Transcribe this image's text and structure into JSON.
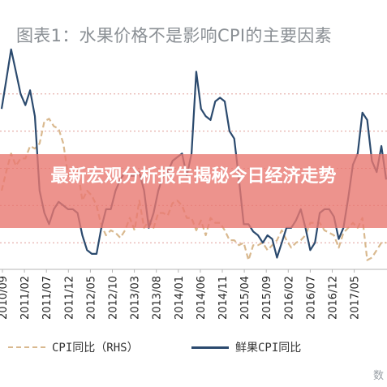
{
  "title": "图表1：水果价格不是影响CPI的主要因素",
  "banner": "最新宏观分析报告揭秘今日经济走势",
  "watermark": "数",
  "colors": {
    "fresh_fruit": "#2b4a6e",
    "cpi": "#d9b98f",
    "banner": "#e87870",
    "grid": "#c0392b",
    "axis": "#b5b5b5"
  },
  "chart_data": {
    "type": "line",
    "x": [
      "2010-09",
      "2010-10",
      "2010-11",
      "2010-12",
      "2011-01",
      "2011-02",
      "2011-03",
      "2011-04",
      "2011-05",
      "2011-06",
      "2011-07",
      "2011-08",
      "2011-09",
      "2011-10",
      "2011-11",
      "2011-12",
      "2012-01",
      "2012-02",
      "2012-03",
      "2012-04",
      "2012-05",
      "2012-06",
      "2012-07",
      "2012-08",
      "2012-09",
      "2012-10",
      "2012-11",
      "2012-12",
      "2013-01",
      "2013-02",
      "2013-03",
      "2013-04",
      "2013-05",
      "2013-06",
      "2013-07",
      "2013-08",
      "2013-09",
      "2013-10",
      "2013-11",
      "2013-12",
      "2014-01",
      "2014-02",
      "2014-03",
      "2014-04",
      "2014-05",
      "2014-06",
      "2014-07",
      "2014-08",
      "2014-09",
      "2014-10",
      "2014-11",
      "2014-12",
      "2015-01",
      "2015-02",
      "2015-03",
      "2015-04",
      "2015-05",
      "2015-06",
      "2015-07",
      "2015-08",
      "2015-09",
      "2015-10",
      "2015-11",
      "2015-12",
      "2016-01",
      "2016-02",
      "2016-03",
      "2016-04",
      "2016-05",
      "2016-06",
      "2016-07",
      "2016-08",
      "2016-09",
      "2016-10",
      "2016-11",
      "2016-12",
      "2017-01",
      "2017-02",
      "2017-03",
      "2017-04",
      "2017-05",
      "2017-06"
    ],
    "categories": [
      "2010/09",
      "2011/02",
      "2011/07",
      "2011/12",
      "2012/05",
      "2012/10",
      "2013/03",
      "2013/08",
      "2014/01",
      "2014/06",
      "2014/11",
      "2015/04",
      "2015/09",
      "2016/02",
      "2016/07",
      "2016/12",
      "2017/05"
    ],
    "series": [
      {
        "name": "CPI同比（RHS）",
        "style": "dashed",
        "values": [
          3.6,
          4.4,
          5.1,
          4.6,
          4.9,
          4.9,
          5.4,
          5.3,
          5.5,
          6.4,
          6.5,
          6.2,
          6.1,
          5.5,
          4.2,
          4.1,
          4.5,
          3.2,
          3.6,
          3.4,
          3.0,
          2.2,
          1.8,
          2.0,
          1.9,
          1.7,
          2.0,
          2.5,
          2.0,
          3.2,
          2.1,
          2.4,
          2.1,
          2.7,
          2.7,
          2.6,
          3.1,
          3.2,
          3.0,
          2.5,
          2.5,
          2.0,
          2.4,
          1.8,
          2.5,
          2.3,
          2.3,
          2.0,
          1.6,
          1.6,
          1.4,
          1.5,
          0.8,
          1.4,
          1.4,
          1.5,
          1.2,
          1.4,
          1.6,
          2.0,
          1.6,
          1.3,
          1.5,
          1.6,
          1.8,
          2.3,
          2.3,
          2.3,
          2.0,
          1.9,
          1.8,
          1.3,
          1.9,
          2.1,
          2.3,
          2.1,
          2.5,
          0.8,
          0.9,
          1.2,
          1.5,
          1.5
        ]
      },
      {
        "name": "鲜果CPI同比",
        "style": "solid",
        "values": [
          26,
          34,
          42,
          36,
          30,
          27,
          31,
          24,
          4,
          -2,
          -5,
          -1,
          1,
          0,
          -1,
          -1,
          -2,
          -8,
          -12,
          -13,
          -13,
          -6,
          -1,
          -1,
          4,
          7,
          9,
          8,
          8,
          9,
          4,
          -6,
          -2,
          4,
          8,
          9,
          12,
          13,
          14,
          8,
          14,
          36,
          26,
          24,
          23,
          28,
          29,
          28,
          20,
          18,
          7,
          -5,
          -5,
          -7,
          -8,
          -10,
          -8,
          -9,
          -14,
          -10,
          -6,
          -6,
          -4,
          -1,
          -6,
          -12,
          -10,
          -2,
          -1,
          -1,
          -3,
          -9,
          -6,
          2,
          11,
          14,
          25,
          23,
          12,
          9,
          16,
          7
        ]
      }
    ],
    "yaxis_left": {
      "range": [
        -20,
        40
      ],
      "grid_step": 10
    },
    "yaxis_right": {
      "range": [
        0,
        9
      ]
    },
    "legend_position": "bottom"
  }
}
